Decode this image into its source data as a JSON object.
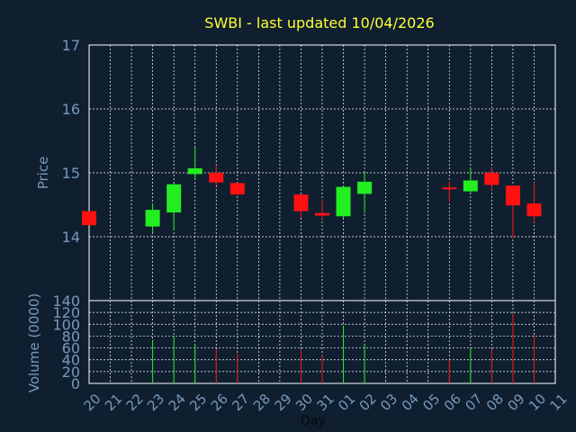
{
  "colors": {
    "background": "#0f1f30",
    "title": "#ffff33",
    "axis_text": "#7799bb",
    "grid": "#ffffff",
    "up": "#22ee22",
    "down": "#ff1111"
  },
  "chart_data": [
    {
      "type": "candlestick",
      "title": "SWBI - last updated 10/04/2026",
      "xlabel": "",
      "ylabel": "Price",
      "ylim": [
        13.0,
        17.0
      ],
      "yticks": [
        "14",
        "15",
        "16",
        "17"
      ],
      "grid": true,
      "categories": [
        "20",
        "21",
        "22",
        "23",
        "24",
        "25",
        "26",
        "27",
        "28",
        "29",
        "30",
        "31",
        "01",
        "02",
        "03",
        "04",
        "05",
        "06",
        "07",
        "08",
        "09",
        "10",
        "11"
      ],
      "series": [
        {
          "candles": [
            {
              "x": "20",
              "open": 14.4,
              "high": 14.4,
              "low": 14.18,
              "close": 14.18
            },
            {
              "x": "23",
              "open": 14.16,
              "high": 14.52,
              "low": 14.07,
              "close": 14.42
            },
            {
              "x": "24",
              "open": 14.38,
              "high": 14.83,
              "low": 14.1,
              "close": 14.82
            },
            {
              "x": "25",
              "open": 14.98,
              "high": 15.4,
              "low": 14.9,
              "close": 15.07
            },
            {
              "x": "26",
              "open": 15.0,
              "high": 15.12,
              "low": 14.8,
              "close": 14.85
            },
            {
              "x": "27",
              "open": 14.84,
              "high": 14.84,
              "low": 14.65,
              "close": 14.66
            },
            {
              "x": "30",
              "open": 14.66,
              "high": 14.66,
              "low": 14.3,
              "close": 14.4
            },
            {
              "x": "31",
              "open": 14.37,
              "high": 14.57,
              "low": 14.28,
              "close": 14.33
            },
            {
              "x": "01",
              "open": 14.32,
              "high": 14.8,
              "low": 14.3,
              "close": 14.78
            },
            {
              "x": "02",
              "open": 14.67,
              "high": 15.0,
              "low": 14.37,
              "close": 14.86
            },
            {
              "x": "06",
              "open": 14.77,
              "high": 14.86,
              "low": 14.55,
              "close": 14.76
            },
            {
              "x": "07",
              "open": 14.71,
              "high": 15.08,
              "low": 14.68,
              "close": 14.88
            },
            {
              "x": "08",
              "open": 15.0,
              "high": 15.08,
              "low": 14.73,
              "close": 14.81
            },
            {
              "x": "09",
              "open": 14.8,
              "high": 14.8,
              "low": 13.98,
              "close": 14.49
            },
            {
              "x": "10",
              "open": 14.52,
              "high": 14.85,
              "low": 14.22,
              "close": 14.32
            }
          ]
        }
      ]
    },
    {
      "type": "bar",
      "xlabel": "Day",
      "ylabel": "Volume (0000)",
      "ylim": [
        0,
        140
      ],
      "yticks": [
        "0",
        "20",
        "40",
        "60",
        "80",
        "100",
        "120",
        "140"
      ],
      "grid": true,
      "categories": [
        "20",
        "21",
        "22",
        "23",
        "24",
        "25",
        "26",
        "27",
        "28",
        "29",
        "30",
        "31",
        "01",
        "02",
        "03",
        "04",
        "05",
        "06",
        "07",
        "08",
        "09",
        "10",
        "11"
      ],
      "series": [
        {
          "bars": [
            {
              "x": "23",
              "value": 74,
              "dir": "up"
            },
            {
              "x": "24",
              "value": 80,
              "dir": "up"
            },
            {
              "x": "25",
              "value": 66,
              "dir": "up"
            },
            {
              "x": "26",
              "value": 58,
              "dir": "down"
            },
            {
              "x": "27",
              "value": 50,
              "dir": "down"
            },
            {
              "x": "30",
              "value": 56,
              "dir": "down"
            },
            {
              "x": "31",
              "value": 48,
              "dir": "down"
            },
            {
              "x": "01",
              "value": 98,
              "dir": "up"
            },
            {
              "x": "02",
              "value": 66,
              "dir": "up"
            },
            {
              "x": "06",
              "value": 40,
              "dir": "down"
            },
            {
              "x": "07",
              "value": 60,
              "dir": "up"
            },
            {
              "x": "08",
              "value": 58,
              "dir": "down"
            },
            {
              "x": "09",
              "value": 118,
              "dir": "down"
            },
            {
              "x": "10",
              "value": 82,
              "dir": "down"
            }
          ]
        }
      ]
    }
  ]
}
